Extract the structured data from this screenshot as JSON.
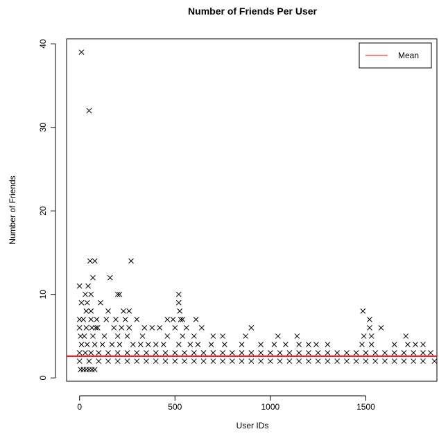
{
  "chart_data": {
    "type": "scatter",
    "title": "Number of Friends Per User",
    "xlabel": "User IDs",
    "ylabel": "Number of Friends",
    "xlim": [
      -68,
      1880
    ],
    "ylim": [
      -0.4,
      40.6
    ],
    "xticks": [
      0,
      500,
      1000,
      1500
    ],
    "yticks": [
      0,
      10,
      20,
      30,
      40
    ],
    "mean": 2.6,
    "mean_color": "#ff0000",
    "marker": "x",
    "marker_color": "#000000",
    "legend": {
      "position": "top-right",
      "entries": [
        {
          "label": "Mean",
          "color": "#ff0000"
        }
      ]
    },
    "points": [
      [
        10,
        39
      ],
      [
        50,
        32
      ],
      [
        55,
        14
      ],
      [
        80,
        14
      ],
      [
        270,
        14
      ],
      [
        70,
        12
      ],
      [
        160,
        12
      ],
      [
        200,
        10
      ],
      [
        210,
        10
      ],
      [
        520,
        10
      ],
      [
        0,
        11
      ],
      [
        45,
        11
      ],
      [
        30,
        10
      ],
      [
        60,
        10
      ],
      [
        110,
        9
      ],
      [
        520,
        9
      ],
      [
        10,
        9
      ],
      [
        40,
        9
      ],
      [
        35,
        8
      ],
      [
        60,
        8
      ],
      [
        150,
        8
      ],
      [
        230,
        8
      ],
      [
        260,
        8
      ],
      [
        525,
        8
      ],
      [
        1485,
        8
      ],
      [
        0,
        7
      ],
      [
        20,
        7
      ],
      [
        60,
        7
      ],
      [
        90,
        7
      ],
      [
        140,
        7
      ],
      [
        190,
        7
      ],
      [
        240,
        7
      ],
      [
        300,
        7
      ],
      [
        460,
        7
      ],
      [
        490,
        7
      ],
      [
        530,
        7
      ],
      [
        540,
        7
      ],
      [
        610,
        7
      ],
      [
        1520,
        7
      ],
      [
        0,
        6
      ],
      [
        35,
        6
      ],
      [
        65,
        6
      ],
      [
        85,
        6
      ],
      [
        95,
        6
      ],
      [
        180,
        6
      ],
      [
        220,
        6
      ],
      [
        260,
        6
      ],
      [
        340,
        6
      ],
      [
        380,
        6
      ],
      [
        420,
        6
      ],
      [
        500,
        6
      ],
      [
        560,
        6
      ],
      [
        640,
        6
      ],
      [
        900,
        6
      ],
      [
        1520,
        6
      ],
      [
        1580,
        6
      ],
      [
        5,
        5
      ],
      [
        25,
        5
      ],
      [
        70,
        5
      ],
      [
        130,
        5
      ],
      [
        200,
        5
      ],
      [
        250,
        5
      ],
      [
        330,
        5
      ],
      [
        460,
        5
      ],
      [
        540,
        5
      ],
      [
        600,
        5
      ],
      [
        700,
        5
      ],
      [
        750,
        5
      ],
      [
        870,
        5
      ],
      [
        1040,
        5
      ],
      [
        1140,
        5
      ],
      [
        1490,
        5
      ],
      [
        1530,
        5
      ],
      [
        1710,
        5
      ],
      [
        10,
        4
      ],
      [
        40,
        4
      ],
      [
        80,
        4
      ],
      [
        120,
        4
      ],
      [
        170,
        4
      ],
      [
        210,
        4
      ],
      [
        280,
        4
      ],
      [
        320,
        4
      ],
      [
        360,
        4
      ],
      [
        400,
        4
      ],
      [
        440,
        4
      ],
      [
        520,
        4
      ],
      [
        580,
        4
      ],
      [
        620,
        4
      ],
      [
        690,
        4
      ],
      [
        760,
        4
      ],
      [
        850,
        4
      ],
      [
        950,
        4
      ],
      [
        1020,
        4
      ],
      [
        1080,
        4
      ],
      [
        1150,
        4
      ],
      [
        1200,
        4
      ],
      [
        1240,
        4
      ],
      [
        1300,
        4
      ],
      [
        1480,
        4
      ],
      [
        1530,
        4
      ],
      [
        1650,
        4
      ],
      [
        1720,
        4
      ],
      [
        1760,
        4
      ],
      [
        1800,
        4
      ],
      [
        0,
        3
      ],
      [
        30,
        3
      ],
      [
        60,
        3
      ],
      [
        100,
        3
      ],
      [
        150,
        3
      ],
      [
        200,
        3
      ],
      [
        250,
        3
      ],
      [
        300,
        3
      ],
      [
        350,
        3
      ],
      [
        400,
        3
      ],
      [
        450,
        3
      ],
      [
        500,
        3
      ],
      [
        550,
        3
      ],
      [
        600,
        3
      ],
      [
        650,
        3
      ],
      [
        700,
        3
      ],
      [
        750,
        3
      ],
      [
        800,
        3
      ],
      [
        850,
        3
      ],
      [
        900,
        3
      ],
      [
        950,
        3
      ],
      [
        1000,
        3
      ],
      [
        1050,
        3
      ],
      [
        1100,
        3
      ],
      [
        1150,
        3
      ],
      [
        1200,
        3
      ],
      [
        1250,
        3
      ],
      [
        1300,
        3
      ],
      [
        1350,
        3
      ],
      [
        1400,
        3
      ],
      [
        1450,
        3
      ],
      [
        1500,
        3
      ],
      [
        1550,
        3
      ],
      [
        1600,
        3
      ],
      [
        1650,
        3
      ],
      [
        1700,
        3
      ],
      [
        1750,
        3
      ],
      [
        1800,
        3
      ],
      [
        1840,
        3
      ],
      [
        0,
        2
      ],
      [
        50,
        2
      ],
      [
        100,
        2
      ],
      [
        150,
        2
      ],
      [
        200,
        2
      ],
      [
        250,
        2
      ],
      [
        300,
        2
      ],
      [
        350,
        2
      ],
      [
        400,
        2
      ],
      [
        450,
        2
      ],
      [
        500,
        2
      ],
      [
        550,
        2
      ],
      [
        600,
        2
      ],
      [
        650,
        2
      ],
      [
        700,
        2
      ],
      [
        750,
        2
      ],
      [
        800,
        2
      ],
      [
        850,
        2
      ],
      [
        900,
        2
      ],
      [
        950,
        2
      ],
      [
        1000,
        2
      ],
      [
        1050,
        2
      ],
      [
        1100,
        2
      ],
      [
        1150,
        2
      ],
      [
        1200,
        2
      ],
      [
        1250,
        2
      ],
      [
        1300,
        2
      ],
      [
        1350,
        2
      ],
      [
        1400,
        2
      ],
      [
        1450,
        2
      ],
      [
        1500,
        2
      ],
      [
        1550,
        2
      ],
      [
        1600,
        2
      ],
      [
        1650,
        2
      ],
      [
        1700,
        2
      ],
      [
        1750,
        2
      ],
      [
        1800,
        2
      ],
      [
        1860,
        2
      ],
      [
        5,
        1
      ],
      [
        20,
        1
      ],
      [
        35,
        1
      ],
      [
        50,
        1
      ],
      [
        65,
        1
      ],
      [
        80,
        1
      ]
    ]
  }
}
